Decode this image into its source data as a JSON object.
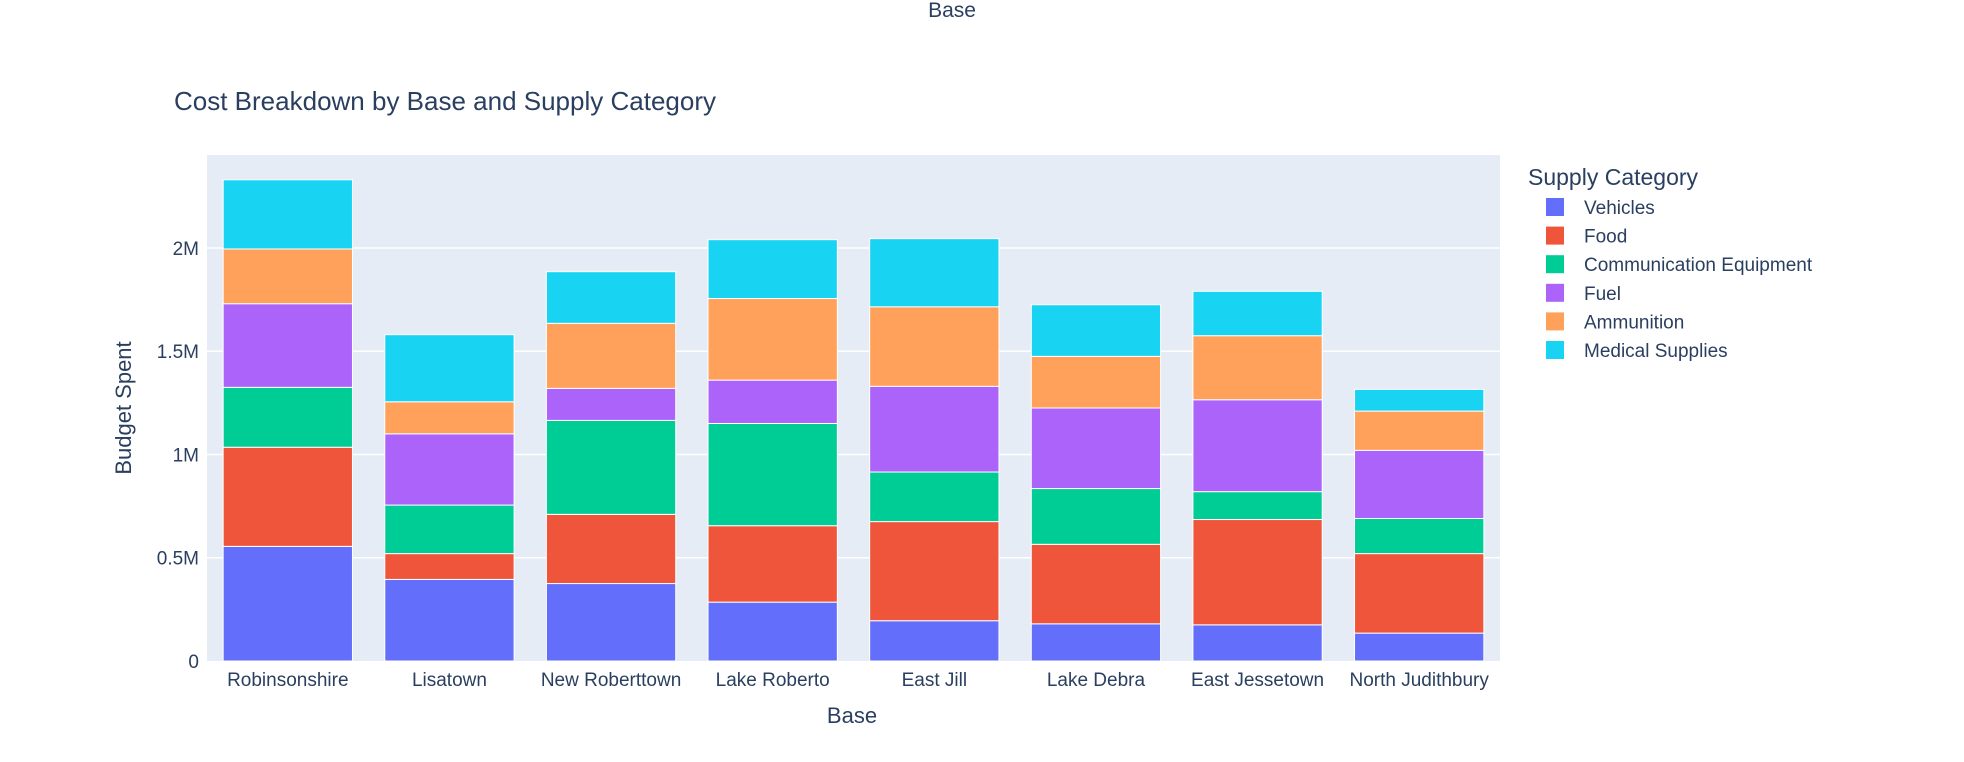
{
  "chart_data": {
    "type": "bar",
    "stacked": true,
    "top_label": "Base",
    "title": "Cost Breakdown by Base and Supply Category",
    "xlabel": "Base",
    "ylabel": "Budget Spent",
    "ylim": [
      0,
      2450000
    ],
    "yticks": [
      {
        "value": 0,
        "label": "0"
      },
      {
        "value": 500000,
        "label": "0.5M"
      },
      {
        "value": 1000000,
        "label": "1M"
      },
      {
        "value": 1500000,
        "label": "1.5M"
      },
      {
        "value": 2000000,
        "label": "2M"
      }
    ],
    "grid": true,
    "plot_background": "#e5ecf6",
    "legend": {
      "title": "Supply Category",
      "placement": "right"
    },
    "categories": [
      "Robinsonshire",
      "Lisatown",
      "New Roberttown",
      "Lake Roberto",
      "East Jill",
      "Lake Debra",
      "East Jessetown",
      "North Judithbury"
    ],
    "series": [
      {
        "name": "Vehicles",
        "color": "#636efa",
        "values": [
          555000,
          395000,
          375000,
          285000,
          195000,
          180000,
          175000,
          135000
        ]
      },
      {
        "name": "Food",
        "color": "#ef553b",
        "values": [
          480000,
          125000,
          335000,
          370000,
          480000,
          385000,
          510000,
          385000
        ]
      },
      {
        "name": "Communication Equipment",
        "color": "#00cc96",
        "values": [
          290000,
          235000,
          455000,
          495000,
          240000,
          270000,
          135000,
          170000
        ]
      },
      {
        "name": "Fuel",
        "color": "#ab63fa",
        "values": [
          405000,
          345000,
          155000,
          210000,
          415000,
          390000,
          445000,
          330000
        ]
      },
      {
        "name": "Ammunition",
        "color": "#ffa15a",
        "values": [
          265000,
          155000,
          315000,
          395000,
          385000,
          250000,
          310000,
          190000
        ]
      },
      {
        "name": "Medical Supplies",
        "color": "#19d3f3",
        "values": [
          335000,
          325000,
          250000,
          285000,
          330000,
          250000,
          215000,
          105000
        ]
      }
    ]
  }
}
